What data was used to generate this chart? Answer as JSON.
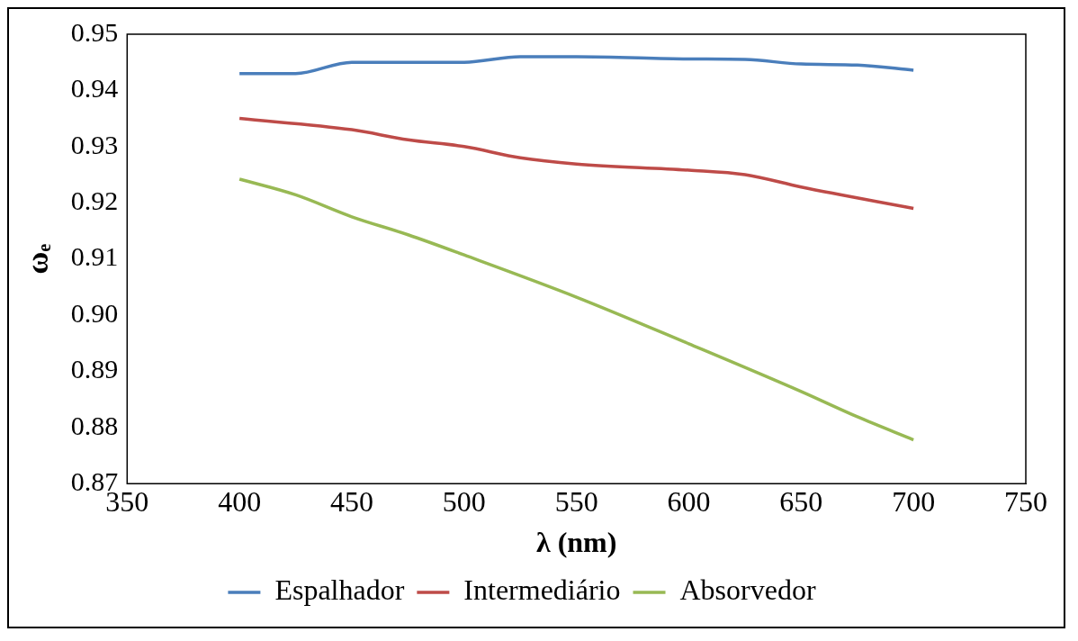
{
  "chart_data": {
    "type": "line",
    "xlabel": "λ (nm)",
    "ylabel": "ωₑ",
    "xlim": [
      350,
      750
    ],
    "xticks": [
      350,
      400,
      450,
      500,
      550,
      600,
      650,
      700,
      750
    ],
    "ylim": [
      0.87,
      0.95
    ],
    "yticks": [
      {
        "value": 0.87,
        "label": "0.87"
      },
      {
        "value": 0.88,
        "label": "0.88"
      },
      {
        "value": 0.89,
        "label": "0.89"
      },
      {
        "value": 0.9,
        "label": "0.90"
      },
      {
        "value": 0.91,
        "label": "0.91"
      },
      {
        "value": 0.92,
        "label": "0.92"
      },
      {
        "value": 0.93,
        "label": "0.93"
      },
      {
        "value": 0.94,
        "label": "0.94"
      },
      {
        "value": 0.95,
        "label": "0.95"
      }
    ],
    "grid": false,
    "legend": "bottom",
    "marker": "none",
    "line_style": "solid",
    "series": [
      {
        "name": "Espalhador",
        "color": "#4a7ebb",
        "x": [
          400,
          425,
          450,
          500,
          525,
          550,
          600,
          625,
          650,
          675,
          700
        ],
        "values": [
          0.943,
          0.943,
          0.945,
          0.945,
          0.946,
          0.946,
          0.9456,
          0.9455,
          0.9447,
          0.9445,
          0.9436
        ]
      },
      {
        "name": "Intermediário",
        "color": "#be4b48",
        "x": [
          400,
          450,
          475,
          500,
          525,
          550,
          600,
          625,
          650,
          700
        ],
        "values": [
          0.935,
          0.933,
          0.9312,
          0.93,
          0.928,
          0.9269,
          0.9258,
          0.925,
          0.9228,
          0.919
        ]
      },
      {
        "name": "Absorvedor",
        "color": "#98b954",
        "x": [
          400,
          425,
          450,
          475,
          500,
          550,
          600,
          650,
          675,
          700
        ],
        "values": [
          0.9242,
          0.9214,
          0.9175,
          0.9143,
          0.9107,
          0.9032,
          0.8949,
          0.8864,
          0.8819,
          0.8778
        ]
      }
    ]
  }
}
